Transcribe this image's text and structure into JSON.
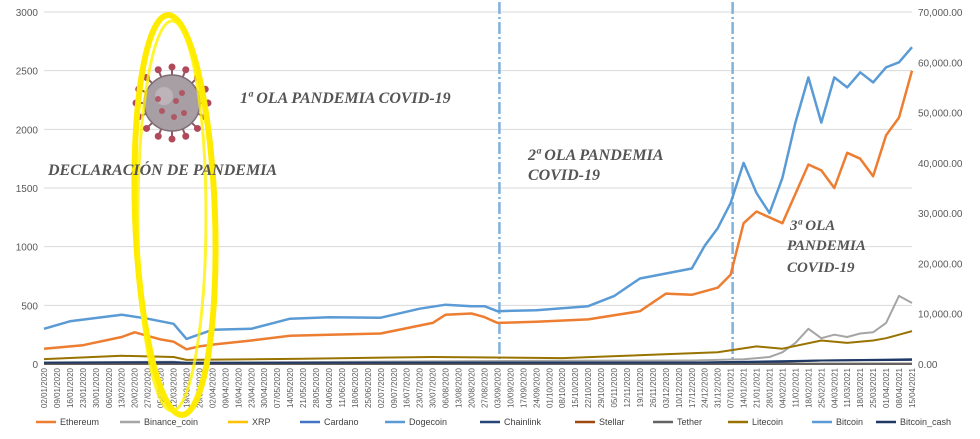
{
  "chart_data": {
    "type": "line",
    "title": "",
    "xlabel": "",
    "ylabel": "",
    "ylim": [
      0,
      3000
    ],
    "y2lim": [
      0,
      70000
    ],
    "y_ticks": [
      "0",
      "500",
      "1000",
      "1500",
      "2000",
      "2500",
      "3000"
    ],
    "y2_ticks": [
      "0.00",
      "10,000.00",
      "20,000.00",
      "30,000.00",
      "40,000.00",
      "50,000.00",
      "60,000.00",
      "70,000.00"
    ],
    "grid": true,
    "legend_position": "bottom",
    "x_tick_labels": [
      "02/01/2020",
      "09/01/2020",
      "16/01/2020",
      "23/01/2020",
      "30/01/2020",
      "06/02/2020",
      "13/02/2020",
      "20/02/2020",
      "27/02/2020",
      "05/03/2020",
      "12/03/2020",
      "19/03/2020",
      "26/03/2020",
      "02/04/2020",
      "09/04/2020",
      "16/04/2020",
      "23/04/2020",
      "30/04/2020",
      "07/05/2020",
      "14/05/2020",
      "21/05/2020",
      "28/05/2020",
      "04/06/2020",
      "11/06/2020",
      "18/06/2020",
      "25/06/2020",
      "02/07/2020",
      "09/07/2020",
      "16/07/2020",
      "23/07/2020",
      "30/07/2020",
      "06/08/2020",
      "13/08/2020",
      "20/08/2020",
      "27/08/2020",
      "03/09/2020",
      "10/09/2020",
      "17/09/2020",
      "24/09/2020",
      "01/10/2020",
      "08/10/2020",
      "15/10/2020",
      "22/10/2020",
      "29/10/2020",
      "05/11/2020",
      "12/11/2020",
      "19/11/2020",
      "26/11/2020",
      "03/12/2020",
      "10/12/2020",
      "17/12/2020",
      "24/12/2020",
      "31/12/2020",
      "07/01/2021",
      "14/01/2021",
      "21/01/2021",
      "28/01/2021",
      "04/02/2021",
      "11/02/2021",
      "18/02/2021",
      "25/02/2021",
      "04/03/2021",
      "11/03/2021",
      "18/03/2021",
      "25/03/2021",
      "01/04/2021",
      "08/04/2021",
      "15/04/2021"
    ],
    "series": [
      {
        "name": "Ethereum",
        "color": "#ED7D31",
        "axis": "left",
        "x": [
          0,
          3,
          6,
          7,
          9,
          10,
          11,
          12,
          13,
          16,
          19,
          22,
          26,
          30,
          31,
          33,
          34,
          35,
          38,
          42,
          46,
          48,
          50,
          52,
          53,
          54,
          55,
          57,
          59,
          60,
          61,
          62,
          63,
          64,
          65,
          66,
          67
        ],
        "y": [
          130,
          160,
          230,
          270,
          210,
          190,
          125,
          150,
          165,
          200,
          240,
          250,
          260,
          350,
          420,
          430,
          400,
          350,
          360,
          380,
          450,
          600,
          590,
          650,
          760,
          1200,
          1300,
          1200,
          1700,
          1650,
          1500,
          1800,
          1750,
          1600,
          1950,
          2100,
          2500
        ]
      },
      {
        "name": "Binance_coin",
        "color": "#A5A5A5",
        "axis": "left",
        "x": [
          0,
          10,
          11,
          20,
          30,
          40,
          50,
          54,
          56,
          57,
          58,
          59,
          60,
          61,
          62,
          63,
          64,
          65,
          66,
          67
        ],
        "y": [
          14,
          20,
          10,
          16,
          22,
          28,
          30,
          40,
          60,
          100,
          180,
          300,
          220,
          250,
          230,
          260,
          270,
          350,
          580,
          520
        ]
      },
      {
        "name": "XRP",
        "color": "#FFC000",
        "axis": "left",
        "x": [
          0,
          67
        ],
        "y": [
          0.2,
          1.4
        ]
      },
      {
        "name": "Cardano",
        "color": "#4472C4",
        "axis": "left",
        "x": [
          0,
          67
        ],
        "y": [
          0.03,
          1.3
        ]
      },
      {
        "name": "Dogecoin",
        "color": "#5B9BD5",
        "axis": "left",
        "x": [
          0,
          67
        ],
        "y": [
          0.002,
          0.4
        ]
      },
      {
        "name": "Chainlink",
        "color": "#264478",
        "axis": "left",
        "x": [
          0,
          10,
          11,
          30,
          50,
          60,
          67
        ],
        "y": [
          2,
          4,
          3,
          12,
          12,
          30,
          40
        ]
      },
      {
        "name": "Stellar",
        "color": "#9E480E",
        "axis": "left",
        "x": [
          0,
          67
        ],
        "y": [
          0.05,
          0.6
        ]
      },
      {
        "name": "Tether",
        "color": "#636363",
        "axis": "left",
        "x": [
          0,
          67
        ],
        "y": [
          1,
          1
        ]
      },
      {
        "name": "Litecoin",
        "color": "#997300",
        "axis": "left",
        "x": [
          0,
          6,
          10,
          11,
          20,
          30,
          40,
          52,
          55,
          57,
          60,
          62,
          64,
          65,
          66,
          67
        ],
        "y": [
          42,
          70,
          60,
          35,
          45,
          60,
          50,
          100,
          150,
          130,
          200,
          180,
          200,
          220,
          250,
          280
        ]
      },
      {
        "name": "Bitcoin",
        "color": "#5B9BD5",
        "axis": "right",
        "x": [
          0,
          2,
          6,
          8,
          10,
          11,
          13,
          16,
          19,
          22,
          26,
          29,
          31,
          33,
          34,
          35,
          38,
          42,
          44,
          46,
          48,
          50,
          51,
          52,
          53,
          54,
          55,
          56,
          57,
          58,
          59,
          60,
          61,
          62,
          63,
          64,
          65,
          66,
          67
        ],
        "y": [
          7000,
          8500,
          9800,
          9000,
          8000,
          5000,
          6800,
          7000,
          9000,
          9300,
          9200,
          11000,
          11800,
          11500,
          11500,
          10500,
          10700,
          11500,
          13500,
          17000,
          18000,
          19000,
          23500,
          27000,
          32000,
          40000,
          34000,
          30000,
          37000,
          48000,
          57000,
          48000,
          57000,
          55000,
          58000,
          56000,
          59000,
          60000,
          63000
        ]
      },
      {
        "name": "Bitcoin_cash",
        "color": "#203864",
        "axis": "left",
        "x": [
          0,
          10,
          11,
          30,
          50,
          57,
          60,
          67
        ],
        "y": [
          10,
          15,
          10,
          12,
          12,
          20,
          30,
          35
        ]
      }
    ],
    "annotations": [
      {
        "text": "DECLARACIÓN DE PANDEMIA"
      },
      {
        "text": "1ª OLA PANDEMIA COVID-19"
      },
      {
        "text": "2ª OLA PANDEMIA"
      },
      {
        "text": "COVID-19"
      },
      {
        "text": "3ª OLA"
      },
      {
        "text": "PANDEMIA"
      },
      {
        "text": "COVID-19"
      }
    ],
    "wave_marker_dates": [
      "03/09/2020",
      "07/01/2021"
    ],
    "highlight": {
      "shape": "ellipse",
      "color": "#FFEB00",
      "around": "DECLARACIÓN DE PANDEMIA (March 2020)"
    },
    "virus_picture": {
      "icon": "coronavirus-icon"
    }
  }
}
